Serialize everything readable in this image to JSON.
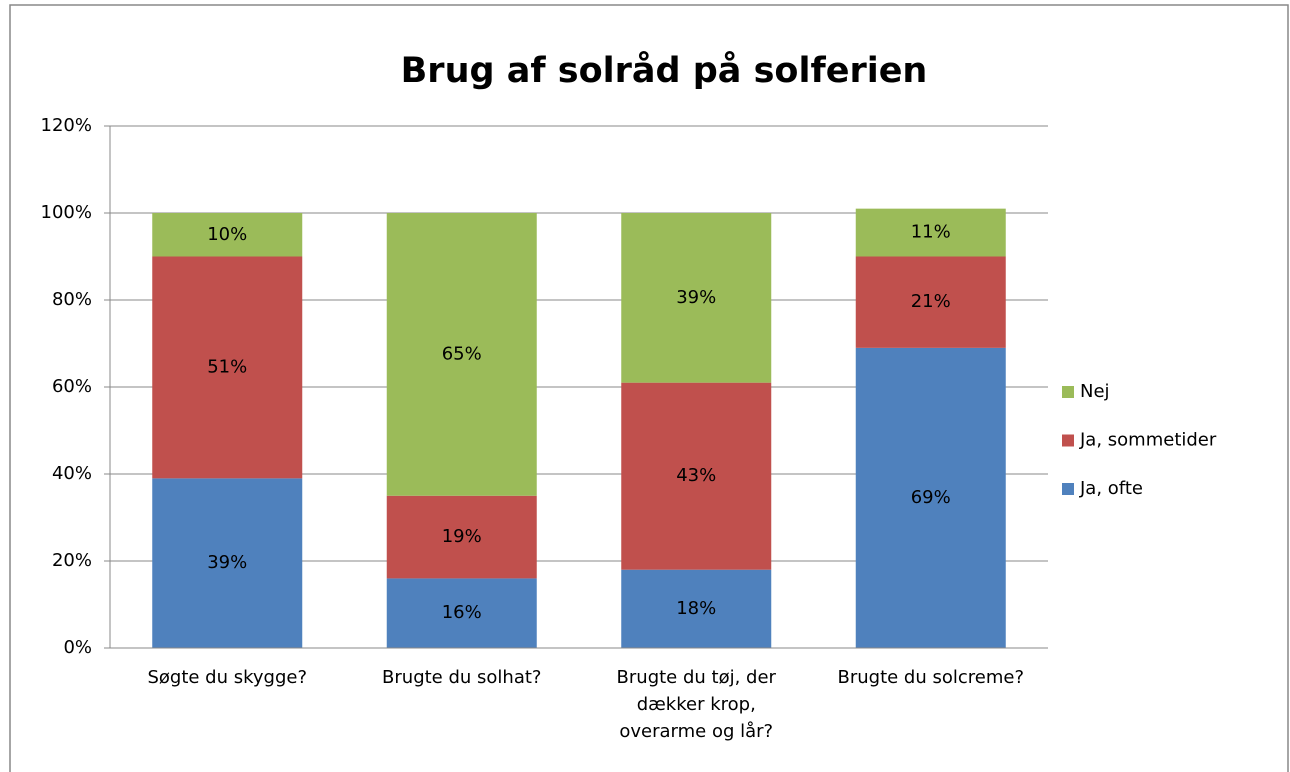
{
  "chart_data": {
    "type": "stacked_bar",
    "title": "Brug af solråd på solferien",
    "categories": [
      "Søgte du skygge?",
      "Brugte du solhat?",
      "Brugte du tøj, der dækker krop, overarme og lår?",
      "Brugte du solcreme?"
    ],
    "series": [
      {
        "name": "Ja, ofte",
        "color": "#4f81bd",
        "values": [
          39,
          16,
          18,
          69
        ],
        "value_labels": [
          "39%",
          "16%",
          "18%",
          "69%"
        ]
      },
      {
        "name": "Ja, sommetider",
        "color": "#c0504d",
        "values": [
          51,
          19,
          43,
          21
        ],
        "value_labels": [
          "51%",
          "19%",
          "43%",
          "21%"
        ]
      },
      {
        "name": "Nej",
        "color": "#9bbb59",
        "values": [
          10,
          65,
          39,
          11
        ],
        "value_labels": [
          "10%",
          "65%",
          "39%",
          "11%"
        ]
      }
    ],
    "ylim": [
      0,
      120
    ],
    "yticks": [
      {
        "value": 0,
        "label": "0%"
      },
      {
        "value": 20,
        "label": "20%"
      },
      {
        "value": 40,
        "label": "40%"
      },
      {
        "value": 60,
        "label": "60%"
      },
      {
        "value": 80,
        "label": "80%"
      },
      {
        "value": 100,
        "label": "100%"
      },
      {
        "value": 120,
        "label": "120%"
      }
    ],
    "grid": true,
    "legend": "right"
  }
}
